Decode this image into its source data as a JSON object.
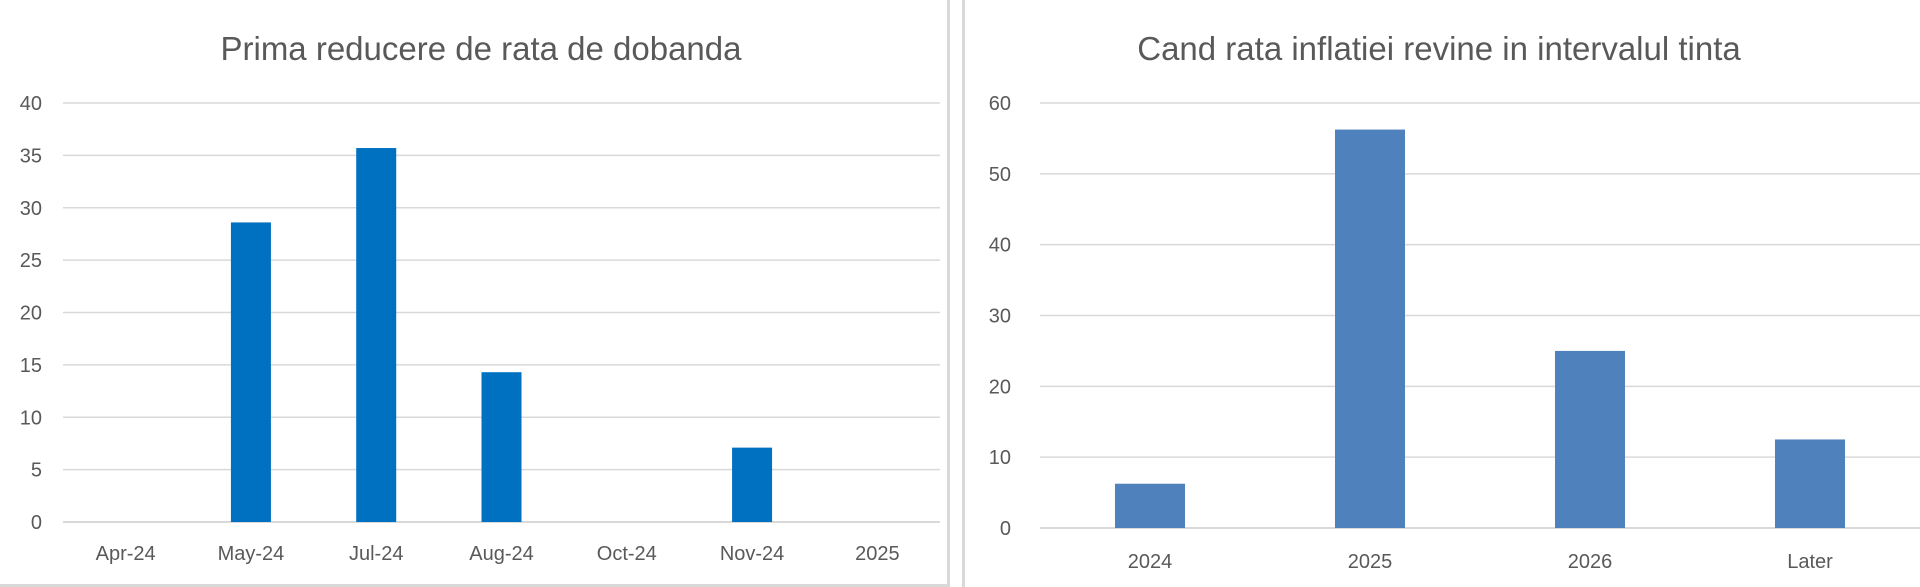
{
  "chart_data": [
    {
      "type": "bar",
      "title": "Prima reducere de rata de dobanda",
      "xlabel": "",
      "ylabel": "",
      "categories": [
        "Apr-24",
        "May-24",
        "Jul-24",
        "Aug-24",
        "Oct-24",
        "Nov-24",
        "2025"
      ],
      "values": [
        0,
        28.6,
        35.7,
        14.3,
        0,
        7.1,
        0
      ],
      "ylim": [
        0,
        40
      ],
      "yticks": [
        0,
        5,
        10,
        15,
        20,
        25,
        30,
        35,
        40
      ],
      "grid": true,
      "legend": "none",
      "bar_color": "#0070c0"
    },
    {
      "type": "bar",
      "title": "Cand rata inflatiei revine in intervalul tinta",
      "xlabel": "",
      "ylabel": "",
      "categories": [
        "2024",
        "2025",
        "2026",
        "Later"
      ],
      "values": [
        6.25,
        56.25,
        25,
        12.5
      ],
      "ylim": [
        0,
        60
      ],
      "yticks": [
        0,
        10,
        20,
        30,
        40,
        50,
        60
      ],
      "grid": true,
      "legend": "none",
      "bar_color": "#4f81bd"
    }
  ]
}
